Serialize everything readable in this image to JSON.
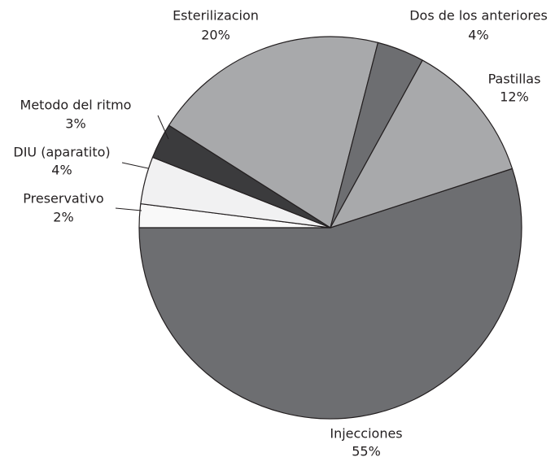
{
  "chart_data": {
    "type": "pie",
    "categories": [
      "Injecciones",
      "Preservativo",
      "DIU (aparatito)",
      "Metodo del ritmo",
      "Esterilizacion",
      "Dos de los anteriores",
      "Pastillas"
    ],
    "values": [
      55,
      2,
      4,
      3,
      20,
      4,
      12
    ],
    "value_labels": [
      "55%",
      "2%",
      "4%",
      "3%",
      "20%",
      "4%",
      "12%"
    ],
    "colors": [
      "#6d6e71",
      "#f9f9f9",
      "#f1f1f2",
      "#3b3b3d",
      "#a8a9ab",
      "#6d6e71",
      "#a8a9ab"
    ]
  }
}
